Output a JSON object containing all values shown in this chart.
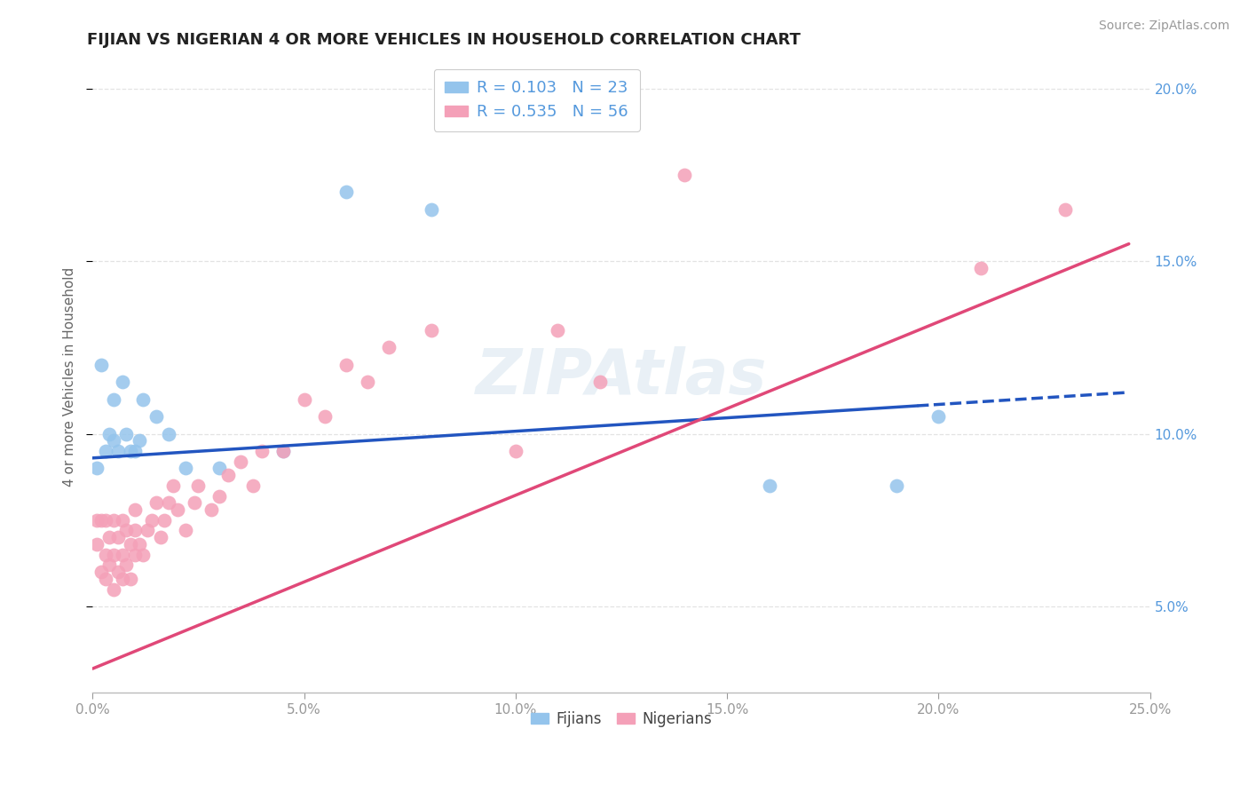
{
  "title": "FIJIAN VS NIGERIAN 4 OR MORE VEHICLES IN HOUSEHOLD CORRELATION CHART",
  "source": "Source: ZipAtlas.com",
  "ylabel_label": "4 or more Vehicles in Household",
  "legend_label1": "Fijians",
  "legend_label2": "Nigerians",
  "R1": 0.103,
  "N1": 23,
  "R2": 0.535,
  "N2": 56,
  "xlim": [
    0.0,
    0.25
  ],
  "ylim": [
    0.025,
    0.208
  ],
  "color_fijian": "#94C4EC",
  "color_nigerian": "#F4A0B8",
  "color_line_fijian": "#2255C0",
  "color_line_nigerian": "#E04878",
  "tick_color_right": "#5599DD",
  "tick_color_left": "#999999",
  "grid_color": "#DDDDDD",
  "title_color": "#222222",
  "source_color": "#999999",
  "fijian_x": [
    0.001,
    0.002,
    0.003,
    0.004,
    0.005,
    0.005,
    0.006,
    0.007,
    0.008,
    0.009,
    0.01,
    0.011,
    0.012,
    0.015,
    0.018,
    0.022,
    0.03,
    0.045,
    0.06,
    0.08,
    0.16,
    0.19,
    0.2
  ],
  "fijian_y": [
    0.09,
    0.12,
    0.095,
    0.1,
    0.098,
    0.11,
    0.095,
    0.115,
    0.1,
    0.095,
    0.095,
    0.098,
    0.11,
    0.105,
    0.1,
    0.09,
    0.09,
    0.095,
    0.17,
    0.165,
    0.085,
    0.085,
    0.105
  ],
  "nigerian_x": [
    0.001,
    0.001,
    0.002,
    0.002,
    0.003,
    0.003,
    0.003,
    0.004,
    0.004,
    0.005,
    0.005,
    0.005,
    0.006,
    0.006,
    0.007,
    0.007,
    0.007,
    0.008,
    0.008,
    0.009,
    0.009,
    0.01,
    0.01,
    0.01,
    0.011,
    0.012,
    0.013,
    0.014,
    0.015,
    0.016,
    0.017,
    0.018,
    0.019,
    0.02,
    0.022,
    0.024,
    0.025,
    0.028,
    0.03,
    0.032,
    0.035,
    0.038,
    0.04,
    0.045,
    0.05,
    0.055,
    0.06,
    0.065,
    0.07,
    0.08,
    0.1,
    0.11,
    0.12,
    0.14,
    0.21,
    0.23
  ],
  "nigerian_y": [
    0.068,
    0.075,
    0.06,
    0.075,
    0.058,
    0.065,
    0.075,
    0.062,
    0.07,
    0.055,
    0.065,
    0.075,
    0.06,
    0.07,
    0.058,
    0.065,
    0.075,
    0.062,
    0.072,
    0.058,
    0.068,
    0.065,
    0.072,
    0.078,
    0.068,
    0.065,
    0.072,
    0.075,
    0.08,
    0.07,
    0.075,
    0.08,
    0.085,
    0.078,
    0.072,
    0.08,
    0.085,
    0.078,
    0.082,
    0.088,
    0.092,
    0.085,
    0.095,
    0.095,
    0.11,
    0.105,
    0.12,
    0.115,
    0.125,
    0.13,
    0.095,
    0.13,
    0.115,
    0.175,
    0.148,
    0.165
  ],
  "line_fij_x0": 0.0,
  "line_fij_y0": 0.093,
  "line_fij_x1": 0.245,
  "line_fij_y1": 0.112,
  "line_nig_x0": 0.0,
  "line_nig_y0": 0.032,
  "line_nig_x1": 0.245,
  "line_nig_y1": 0.155,
  "solid_cutoff_fij": 0.195
}
